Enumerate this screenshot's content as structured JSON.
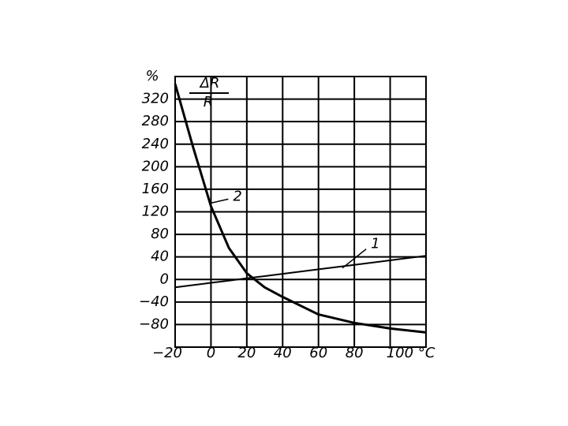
{
  "chart_data": {
    "type": "line",
    "y_unit": "%",
    "ylabel": [
      "ΔR",
      "R"
    ],
    "x": [
      -20,
      -10,
      0,
      10,
      20,
      30,
      40,
      60,
      80,
      100,
      120
    ],
    "series": [
      {
        "name": "1",
        "color": "#000000",
        "values": [
          -14,
          -10,
          -6,
          -2,
          2,
          6,
          10,
          18,
          26,
          34,
          42
        ]
      },
      {
        "name": "2",
        "color": "#000000",
        "values": [
          347,
          235,
          130,
          56,
          11,
          -14,
          -31,
          -62,
          -77,
          -87,
          -94
        ]
      }
    ],
    "xlim": [
      -20,
      120
    ],
    "ylim": [
      -120,
      360
    ],
    "xticks": [
      {
        "value": -20,
        "label": "−20"
      },
      0,
      20,
      40,
      60,
      80,
      {
        "value": 100,
        "label": "100 °C"
      }
    ],
    "yticks": [
      {
        "value": -80,
        "label": "−80"
      },
      {
        "value": -40,
        "label": "−40"
      },
      0,
      40,
      80,
      120,
      160,
      200,
      240,
      280,
      320
    ],
    "grid": true
  }
}
